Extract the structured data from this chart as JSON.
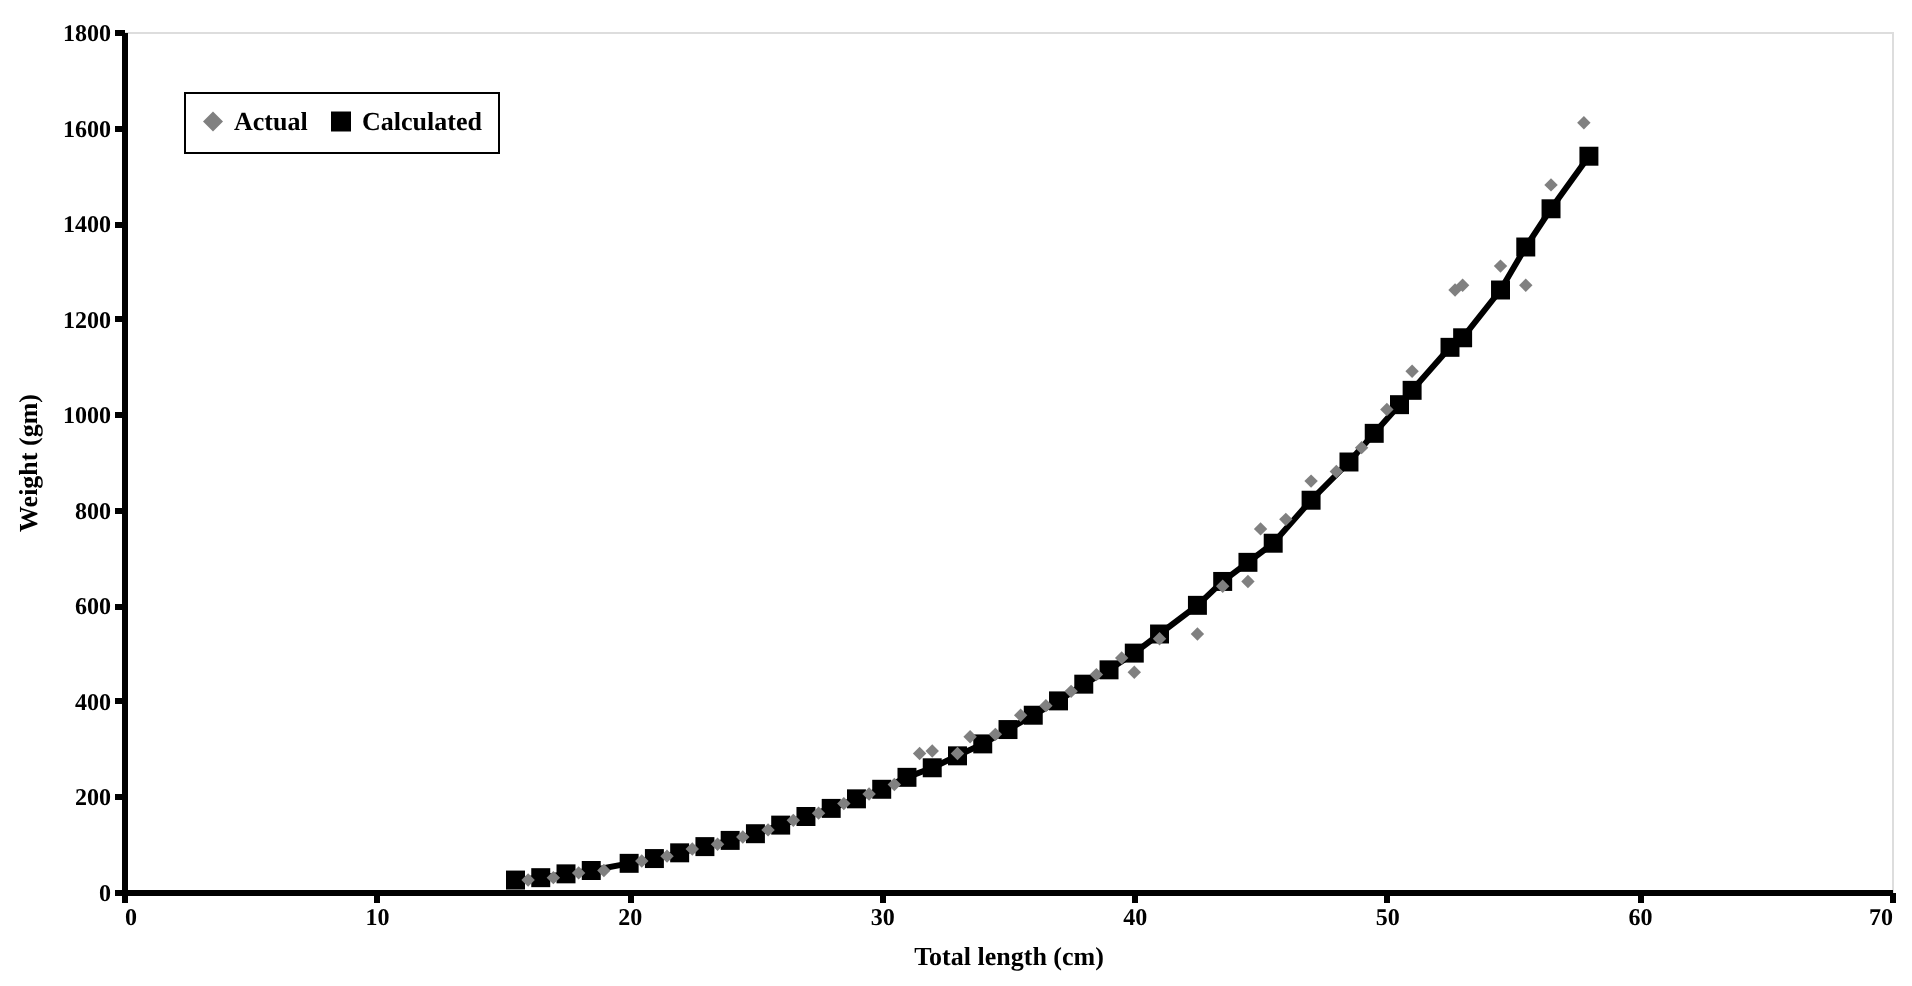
{
  "chart_data": {
    "type": "scatter",
    "xlabel": "Total length (cm)",
    "ylabel": "Weight (gm)",
    "xlim": [
      0,
      70
    ],
    "xticks": [
      0,
      10,
      20,
      30,
      40,
      50,
      60,
      70
    ],
    "ylim": [
      0,
      1800
    ],
    "yticks": [
      0,
      200,
      400,
      600,
      800,
      1000,
      1200,
      1400,
      1600,
      1800
    ],
    "grid": false,
    "legend": "top left",
    "series": [
      {
        "name": "Actual",
        "marker": "diamond",
        "color": "#808080",
        "x": [
          16,
          17,
          18,
          19,
          20.5,
          21.5,
          22.5,
          23.5,
          24.5,
          25.5,
          26.5,
          27.5,
          28.5,
          29.5,
          30.5,
          31.5,
          32,
          33,
          33.5,
          34.5,
          35.5,
          36.5,
          37.5,
          38.5,
          39.5,
          40,
          41,
          42.5,
          43.5,
          44.5,
          45,
          46,
          47,
          48,
          49,
          50,
          51,
          52.7,
          53,
          54.5,
          55.5,
          56.5,
          57.8
        ],
        "values": [
          25,
          30,
          40,
          45,
          65,
          75,
          90,
          100,
          115,
          130,
          150,
          165,
          185,
          205,
          225,
          290,
          295,
          290,
          325,
          330,
          370,
          390,
          420,
          455,
          490,
          460,
          530,
          540,
          640,
          650,
          760,
          780,
          860,
          880,
          930,
          1010,
          1090,
          1260,
          1270,
          1310,
          1270,
          1480,
          1610
        ]
      },
      {
        "name": "Calculated",
        "type": "line",
        "marker": "square",
        "color": "#000000",
        "x": [
          15.5,
          16.5,
          17.5,
          18.5,
          20,
          21,
          22,
          23,
          24,
          25,
          26,
          27,
          28,
          29,
          30,
          31,
          32,
          33,
          34,
          35,
          36,
          37,
          38,
          39,
          40,
          41,
          42.5,
          43.5,
          44.5,
          45.5,
          47,
          48.5,
          49.5,
          50.5,
          51,
          52.5,
          53,
          54.5,
          55.5,
          56.5,
          58
        ],
        "values": [
          25,
          30,
          38,
          45,
          60,
          70,
          82,
          95,
          108,
          122,
          140,
          158,
          175,
          195,
          215,
          240,
          260,
          285,
          310,
          340,
          370,
          400,
          435,
          465,
          500,
          540,
          600,
          650,
          690,
          730,
          820,
          900,
          960,
          1020,
          1050,
          1140,
          1160,
          1260,
          1350,
          1430,
          1540
        ]
      }
    ]
  }
}
